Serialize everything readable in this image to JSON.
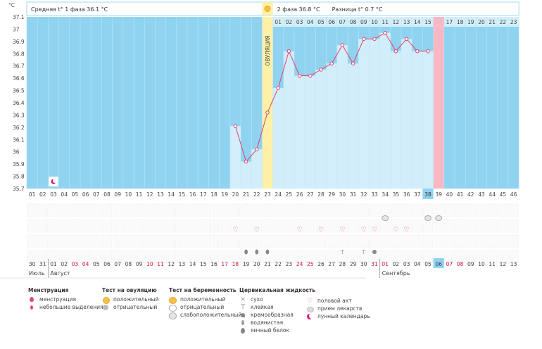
{
  "chart_data": {
    "type": "line",
    "y_unit": "°C",
    "ylim": [
      35.7,
      37.1
    ],
    "y_ticks": [
      "37.1",
      "37",
      "36.9",
      "36.8",
      "36.7",
      "36.6",
      "36.5",
      "36.4",
      "36.3",
      "36.2",
      "36.1",
      "36",
      "35.9",
      "35.8",
      "35.7"
    ],
    "header": {
      "phase1": "Средняя t° 1 фаза 36.1 °C",
      "phase2": "2 фаза 36.8 °C",
      "diff": "Разница t° 0.7 °C"
    },
    "ovulation_label": "ОВУЛЯЦИЯ",
    "cycle_days": [
      "01",
      "02",
      "03",
      "04",
      "05",
      "06",
      "07",
      "08",
      "09",
      "10",
      "11",
      "12",
      "13",
      "14",
      "15",
      "16",
      "17",
      "18",
      "19",
      "20",
      "21",
      "22",
      "23",
      "24",
      "25",
      "26",
      "27",
      "28",
      "29",
      "30",
      "31",
      "32",
      "33",
      "34",
      "35",
      "36",
      "37",
      "38",
      "39",
      "40",
      "41",
      "42",
      "43",
      "44",
      "45",
      "46"
    ],
    "cycle_day_highlight": "38",
    "luteal_days": [
      "01",
      "02",
      "03",
      "04",
      "05",
      "06",
      "07",
      "08",
      "09",
      "10",
      "11",
      "12",
      "13",
      "14",
      "15",
      "16",
      "17",
      "18",
      "19",
      "20",
      "21",
      "22",
      "23"
    ],
    "luteal_highlight": "16",
    "temperatures": [
      {
        "day": 20,
        "value": 36.21
      },
      {
        "day": 21,
        "value": 35.92
      },
      {
        "day": 22,
        "value": 36.02
      },
      {
        "day": 23,
        "value": 36.32
      },
      {
        "day": 24,
        "value": 36.52
      },
      {
        "day": 25,
        "value": 36.82
      },
      {
        "day": 26,
        "value": 36.62
      },
      {
        "day": 27,
        "value": 36.62
      },
      {
        "day": 28,
        "value": 36.67
      },
      {
        "day": 29,
        "value": 36.72
      },
      {
        "day": 30,
        "value": 36.87
      },
      {
        "day": 31,
        "value": 36.72
      },
      {
        "day": 32,
        "value": 36.92
      },
      {
        "day": 33,
        "value": 36.92
      },
      {
        "day": 34,
        "value": 36.97
      },
      {
        "day": 35,
        "value": 36.82
      },
      {
        "day": 36,
        "value": 36.92
      },
      {
        "day": 37,
        "value": 36.82
      },
      {
        "day": 38,
        "value": 36.82
      }
    ],
    "ovulation_day": 23,
    "period_day": 39,
    "moon_day": 3,
    "symbols": {
      "pill": [
        34,
        38,
        39
      ],
      "heart": [
        20,
        22,
        26,
        28,
        30,
        32,
        33,
        35,
        36
      ],
      "drop": [
        21,
        22,
        23
      ],
      "tshape": [
        30,
        32
      ],
      "g": [
        33
      ]
    },
    "dates": [
      "30",
      "31",
      "01",
      "02",
      "03",
      "04",
      "05",
      "06",
      "07",
      "08",
      "09",
      "10",
      "11",
      "12",
      "13",
      "14",
      "15",
      "16",
      "17",
      "18",
      "19",
      "20",
      "21",
      "22",
      "23",
      "24",
      "25",
      "26",
      "27",
      "28",
      "29",
      "30",
      "31",
      "01",
      "02",
      "03",
      "04",
      "05",
      "06",
      "07",
      "08",
      "09",
      "10",
      "11",
      "12",
      "13"
    ],
    "red_dates_idx": [
      4,
      5,
      11,
      12,
      18,
      19,
      25,
      26,
      32,
      33,
      39,
      40
    ],
    "date_highlight_idx": 38,
    "months": [
      {
        "label": "Июль",
        "start_idx": 0
      },
      {
        "label": "Август",
        "start_idx": 2
      },
      {
        "label": "Сентябрь",
        "start_idx": 33
      }
    ]
  },
  "legend": {
    "menstruation": {
      "title": "Менструация",
      "items": [
        "менструация",
        "небольшие выделения"
      ]
    },
    "ovulation_test": {
      "title": "Тест на овуляцию",
      "items": [
        "положительный",
        "отрицательный"
      ]
    },
    "pregnancy_test": {
      "title": "Тест на беременность",
      "items": [
        "положительный",
        "отрицательный",
        "слабоположительный"
      ]
    },
    "cervical": {
      "title": "Цервикальная жидкость",
      "items": [
        "сухо",
        "клейкая",
        "кремообразная",
        "водянистая",
        "яичный белок"
      ]
    },
    "other": {
      "items": [
        "половой акт",
        "прием лекарств",
        "лунный календарь"
      ]
    }
  },
  "colors": {
    "blue": "#8fd3f0",
    "light_blue": "#d3eefb",
    "yellow": "#fdf1a8",
    "pink": "#f9b6c4",
    "line": "#e0406a",
    "highlight": "#8fd3f0"
  }
}
